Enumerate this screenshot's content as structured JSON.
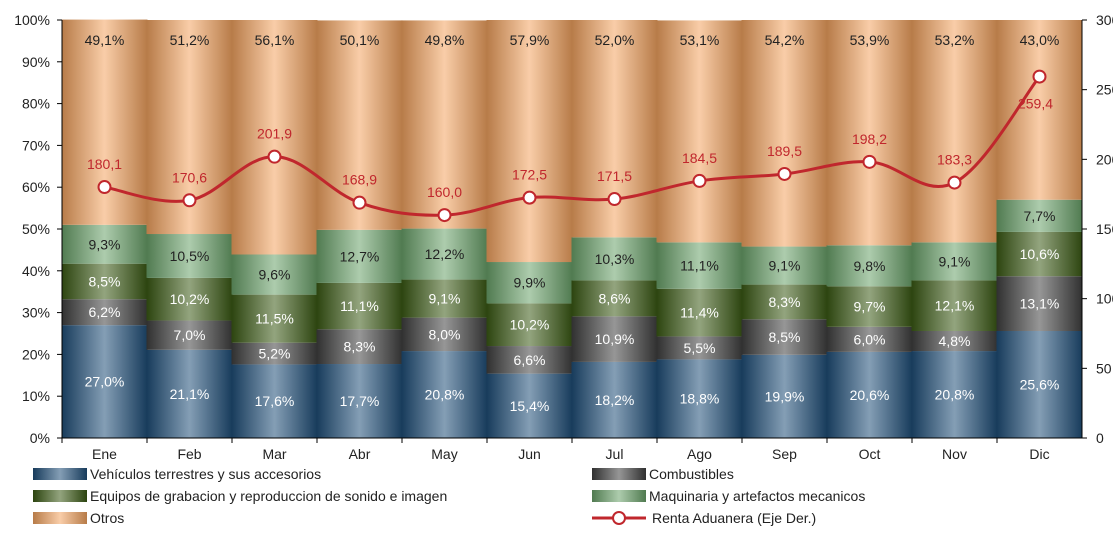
{
  "chart_data": {
    "type": "bar",
    "stacked": true,
    "percent_stacked": true,
    "categories": [
      "Ene",
      "Feb",
      "Mar",
      "Abr",
      "May",
      "Jun",
      "Jul",
      "Ago",
      "Sep",
      "Oct",
      "Nov",
      "Dic"
    ],
    "left_axis": {
      "ticks": [
        "0%",
        "10%",
        "20%",
        "30%",
        "40%",
        "50%",
        "60%",
        "70%",
        "80%",
        "90%",
        "100%"
      ],
      "ylim": [
        0,
        100
      ]
    },
    "right_axis": {
      "ticks": [
        "0",
        "50",
        "100",
        "150",
        "200",
        "250",
        "300"
      ],
      "ylim": [
        0,
        300
      ]
    },
    "series": [
      {
        "name": "Vehículos terrestres y sus accesorios",
        "color": "#1f4e79",
        "values": [
          27.0,
          21.1,
          17.6,
          17.7,
          20.8,
          15.4,
          18.2,
          18.8,
          19.9,
          20.6,
          20.8,
          25.6
        ],
        "labels": [
          "27,0%",
          "21,1%",
          "17,6%",
          "17,7%",
          "20,8%",
          "15,4%",
          "18,2%",
          "18,8%",
          "19,9%",
          "20,6%",
          "20,8%",
          "25,6%"
        ]
      },
      {
        "name": "Combustibles",
        "color": "#404040",
        "values": [
          6.2,
          7.0,
          5.2,
          8.3,
          8.0,
          6.6,
          10.9,
          5.5,
          8.5,
          6.0,
          4.8,
          13.1
        ],
        "labels": [
          "6,2%",
          "7,0%",
          "5,2%",
          "8,3%",
          "8,0%",
          "6,6%",
          "10,9%",
          "5,5%",
          "8,5%",
          "6,0%",
          "4,8%",
          "13,1%"
        ]
      },
      {
        "name": "Equipos de grabacion y reproduccion de sonido e imagen",
        "color": "#3a5a14",
        "values": [
          8.5,
          10.2,
          11.5,
          11.1,
          9.1,
          10.2,
          8.6,
          11.4,
          8.3,
          9.7,
          12.1,
          10.6
        ],
        "labels": [
          "8,5%",
          "10,2%",
          "11,5%",
          "11,1%",
          "9,1%",
          "10,2%",
          "8,6%",
          "11,4%",
          "8,3%",
          "9,7%",
          "12,1%",
          "10,6%"
        ]
      },
      {
        "name": "Maquinaria y artefactos mecanicos",
        "color": "#6aa36a",
        "values": [
          9.3,
          10.5,
          9.6,
          12.7,
          12.2,
          9.9,
          10.3,
          11.1,
          9.1,
          9.8,
          9.1,
          7.7
        ],
        "labels": [
          "9,3%",
          "10,5%",
          "9,6%",
          "12,7%",
          "12,2%",
          "9,9%",
          "10,3%",
          "11,1%",
          "9,1%",
          "9,8%",
          "9,1%",
          "7,7%"
        ]
      },
      {
        "name": "Otros",
        "color": "#f4a460",
        "values": [
          49.1,
          51.2,
          56.1,
          50.1,
          49.8,
          57.9,
          52.0,
          53.1,
          54.2,
          53.9,
          53.2,
          43.0
        ],
        "labels": [
          "49,1%",
          "51,2%",
          "56,1%",
          "50,1%",
          "49,8%",
          "57,9%",
          "52,0%",
          "53,1%",
          "54,2%",
          "53,9%",
          "53,2%",
          "43,0%"
        ]
      }
    ],
    "line_series": {
      "name": "Renta Aduanera (Eje Der.)",
      "color": "#c0272d",
      "axis": "right",
      "values": [
        180.1,
        170.6,
        201.9,
        168.9,
        160.0,
        172.5,
        171.5,
        184.5,
        189.5,
        198.2,
        183.3,
        259.4
      ],
      "labels": [
        "180,1",
        "170,6",
        "201,9",
        "168,9",
        "160,0",
        "172,5",
        "171,5",
        "184,5",
        "189,5",
        "198,2",
        "183,3",
        "259,4"
      ]
    },
    "legend_position": "bottom",
    "grid": false
  }
}
